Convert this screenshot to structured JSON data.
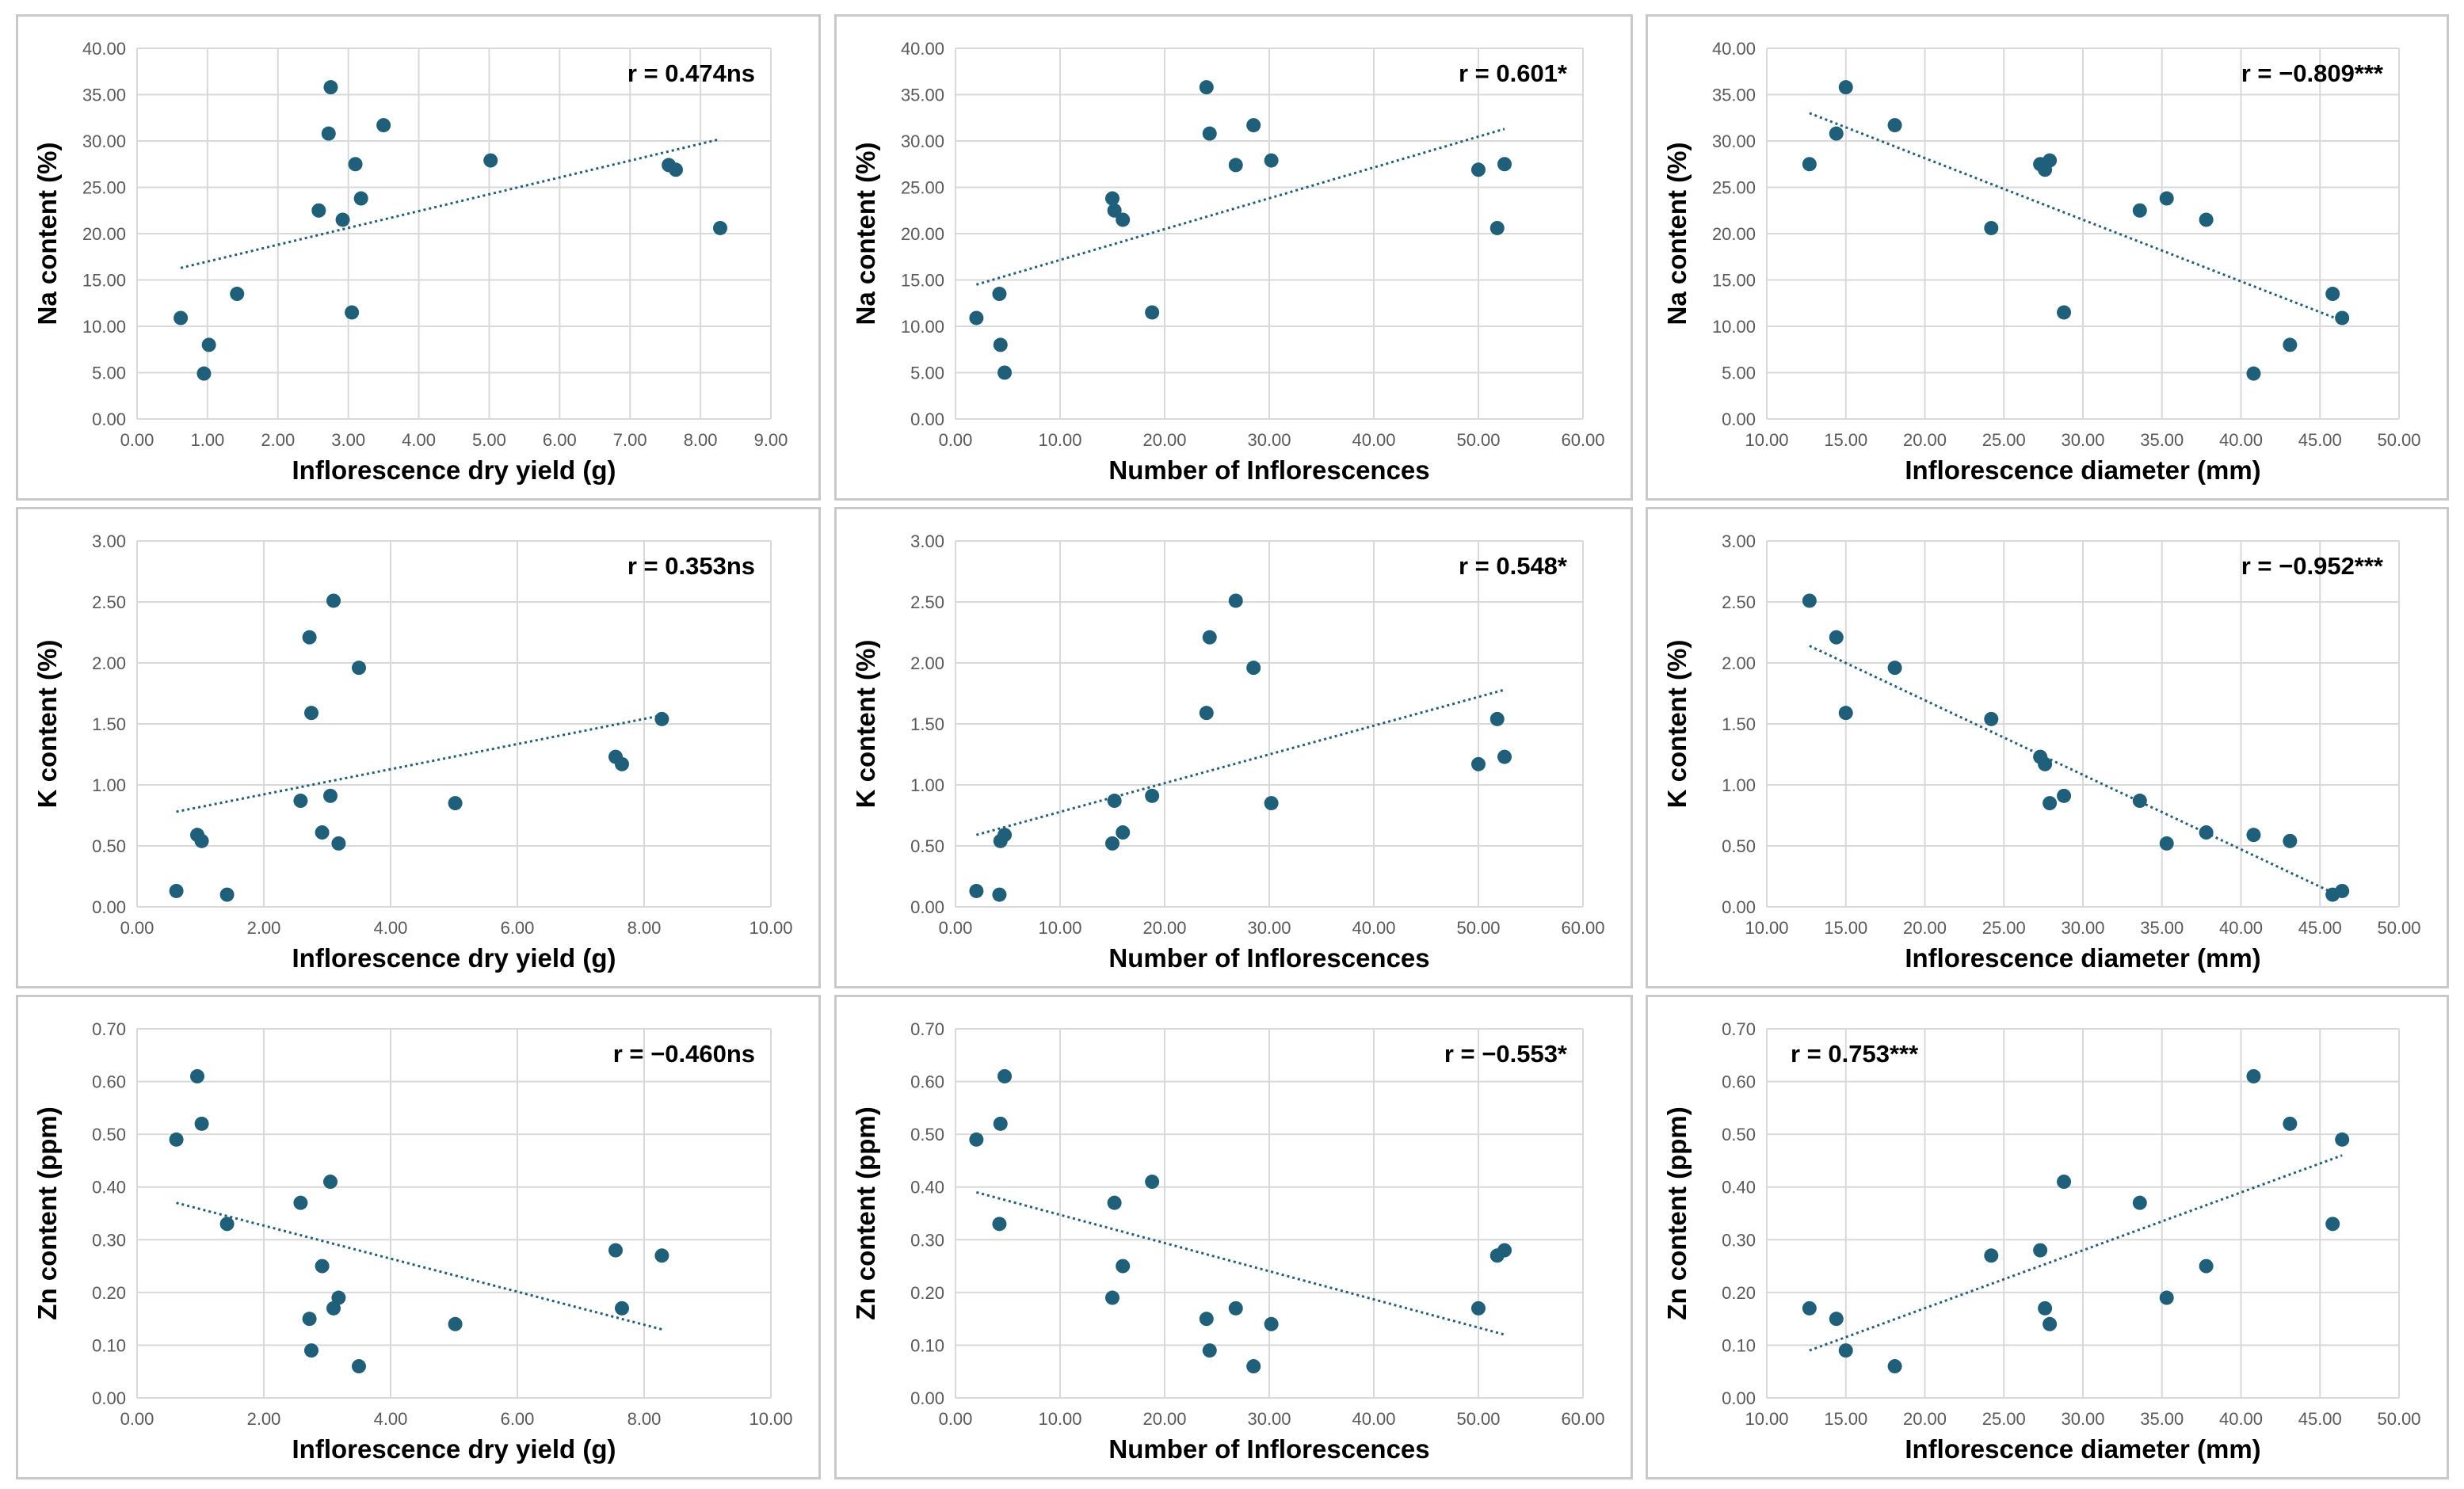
{
  "colors": {
    "point": "#1f5f7a",
    "trend": "#1f5f7a",
    "grid": "#d9d9d9",
    "axis_text": "#595959",
    "label": "#000000"
  },
  "chart_data": [
    {
      "type": "scatter",
      "xlabel": "Inflorescence dry yield (g)",
      "ylabel": "Na content (%)",
      "annotation": "r = 0.474ns",
      "xlim": [
        0,
        9
      ],
      "ylim": [
        0,
        40
      ],
      "xticks": [
        "0.00",
        "1.00",
        "2.00",
        "3.00",
        "4.00",
        "5.00",
        "6.00",
        "7.00",
        "8.00",
        "9.00"
      ],
      "yticks": [
        "0.00",
        "5.00",
        "10.00",
        "15.00",
        "20.00",
        "25.00",
        "30.00",
        "35.00",
        "40.00"
      ],
      "x": [
        0.62,
        1.02,
        0.95,
        1.42,
        2.58,
        2.72,
        2.75,
        2.92,
        3.05,
        3.1,
        3.18,
        3.5,
        5.02,
        7.55,
        7.65,
        8.28
      ],
      "y": [
        10.9,
        8.0,
        4.9,
        13.5,
        22.5,
        30.8,
        35.8,
        21.5,
        11.5,
        27.5,
        23.8,
        31.7,
        27.9,
        27.4,
        26.9,
        20.6
      ],
      "trend": [
        [
          0.62,
          16.3
        ],
        [
          8.28,
          30.2
        ]
      ]
    },
    {
      "type": "scatter",
      "xlabel": "Number of Inflorescences",
      "ylabel": "Na content (%)",
      "annotation": "r = 0.601*",
      "xlim": [
        0,
        60
      ],
      "ylim": [
        0,
        40
      ],
      "xticks": [
        "0.00",
        "10.00",
        "20.00",
        "30.00",
        "40.00",
        "50.00",
        "60.00"
      ],
      "yticks": [
        "0.00",
        "5.00",
        "10.00",
        "15.00",
        "20.00",
        "25.00",
        "30.00",
        "35.00",
        "40.00"
      ],
      "x": [
        2.0,
        4.2,
        4.3,
        4.7,
        15.0,
        15.2,
        16.0,
        18.8,
        24.0,
        24.3,
        26.8,
        28.5,
        30.2,
        50.0,
        51.8,
        52.5
      ],
      "y": [
        10.9,
        13.5,
        8.0,
        5.0,
        23.8,
        22.5,
        21.5,
        11.5,
        35.8,
        30.8,
        27.4,
        31.7,
        27.9,
        26.9,
        20.6,
        27.5
      ],
      "trend": [
        [
          2.0,
          14.5
        ],
        [
          52.5,
          31.3
        ]
      ]
    },
    {
      "type": "scatter",
      "xlabel": "Inflorescence diameter (mm)",
      "ylabel": "Na content (%)",
      "annotation": "r = −0.809***",
      "xlim": [
        10,
        50
      ],
      "ylim": [
        0,
        40
      ],
      "xticks": [
        "10.00",
        "15.00",
        "20.00",
        "25.00",
        "30.00",
        "35.00",
        "40.00",
        "45.00",
        "50.00"
      ],
      "yticks": [
        "0.00",
        "5.00",
        "10.00",
        "15.00",
        "20.00",
        "25.00",
        "30.00",
        "35.00",
        "40.00"
      ],
      "x": [
        12.7,
        14.4,
        15.0,
        18.1,
        24.2,
        27.3,
        27.6,
        27.9,
        28.8,
        33.6,
        35.3,
        37.8,
        40.8,
        43.1,
        45.8,
        46.4
      ],
      "y": [
        27.5,
        30.8,
        35.8,
        31.7,
        20.6,
        27.5,
        26.9,
        27.9,
        11.5,
        22.5,
        23.8,
        21.5,
        4.9,
        8.0,
        13.5,
        10.9
      ],
      "trend": [
        [
          12.7,
          33.0
        ],
        [
          46.4,
          10.6
        ]
      ]
    },
    {
      "type": "scatter",
      "xlabel": "Inflorescence dry yield (g)",
      "ylabel": "K  content (%)",
      "annotation": "r = 0.353ns",
      "xlim": [
        0,
        10
      ],
      "ylim": [
        0,
        3
      ],
      "xticks": [
        "0.00",
        "2.00",
        "4.00",
        "6.00",
        "8.00",
        "10.00"
      ],
      "yticks": [
        "0.00",
        "0.50",
        "1.00",
        "1.50",
        "2.00",
        "2.50",
        "3.00"
      ],
      "x": [
        0.62,
        0.95,
        1.02,
        1.42,
        2.58,
        2.72,
        2.75,
        2.92,
        3.05,
        3.1,
        3.18,
        3.5,
        5.02,
        7.55,
        7.65,
        8.28
      ],
      "y": [
        0.13,
        0.59,
        0.54,
        0.1,
        0.87,
        2.21,
        1.59,
        0.61,
        0.91,
        2.51,
        0.52,
        1.96,
        0.85,
        1.23,
        1.17,
        1.54
      ],
      "trend": [
        [
          0.62,
          0.78
        ],
        [
          8.28,
          1.57
        ]
      ]
    },
    {
      "type": "scatter",
      "xlabel": "Number of Inflorescences",
      "ylabel": "K  content (%)",
      "annotation": "r = 0.548*",
      "xlim": [
        0,
        60
      ],
      "ylim": [
        0,
        3
      ],
      "xticks": [
        "0.00",
        "10.00",
        "20.00",
        "30.00",
        "40.00",
        "50.00",
        "60.00"
      ],
      "yticks": [
        "0.00",
        "0.50",
        "1.00",
        "1.50",
        "2.00",
        "2.50",
        "3.00"
      ],
      "x": [
        2.0,
        4.2,
        4.3,
        4.7,
        15.0,
        15.2,
        16.0,
        18.8,
        24.0,
        24.3,
        26.8,
        28.5,
        30.2,
        50.0,
        51.8,
        52.5
      ],
      "y": [
        0.13,
        0.1,
        0.54,
        0.59,
        0.52,
        0.87,
        0.61,
        0.91,
        1.59,
        2.21,
        2.51,
        1.96,
        0.85,
        1.17,
        1.54,
        1.23
      ],
      "trend": [
        [
          2.0,
          0.59
        ],
        [
          52.5,
          1.78
        ]
      ]
    },
    {
      "type": "scatter",
      "xlabel": "Inflorescence diameter (mm)",
      "ylabel": "K  content (%)",
      "annotation": "r = −0.952***",
      "xlim": [
        10,
        50
      ],
      "ylim": [
        0,
        3
      ],
      "xticks": [
        "10.00",
        "15.00",
        "20.00",
        "25.00",
        "30.00",
        "35.00",
        "40.00",
        "45.00",
        "50.00"
      ],
      "yticks": [
        "0.00",
        "0.50",
        "1.00",
        "1.50",
        "2.00",
        "2.50",
        "3.00"
      ],
      "x": [
        12.7,
        14.4,
        15.0,
        18.1,
        24.2,
        27.3,
        27.6,
        27.9,
        28.8,
        33.6,
        35.3,
        37.8,
        40.8,
        43.1,
        45.8,
        46.4
      ],
      "y": [
        2.51,
        2.21,
        1.59,
        1.96,
        1.54,
        1.23,
        1.17,
        0.85,
        0.91,
        0.87,
        0.52,
        0.61,
        0.59,
        0.54,
        0.1,
        0.13
      ],
      "trend": [
        [
          12.7,
          2.14
        ],
        [
          46.4,
          0.08
        ]
      ]
    },
    {
      "type": "scatter",
      "xlabel": "Inflorescence dry yield (g)",
      "ylabel": "Zn  content (ppm)",
      "annotation": "r = −0.460ns",
      "xlim": [
        0,
        10
      ],
      "ylim": [
        0,
        0.7
      ],
      "xticks": [
        "0.00",
        "2.00",
        "4.00",
        "6.00",
        "8.00",
        "10.00"
      ],
      "yticks": [
        "0.00",
        "0.10",
        "0.20",
        "0.30",
        "0.40",
        "0.50",
        "0.60",
        "0.70"
      ],
      "x": [
        0.62,
        0.95,
        1.02,
        1.42,
        2.58,
        2.72,
        2.75,
        2.92,
        3.05,
        3.1,
        3.18,
        3.5,
        5.02,
        7.55,
        7.65,
        8.28
      ],
      "y": [
        0.49,
        0.61,
        0.52,
        0.33,
        0.37,
        0.15,
        0.09,
        0.25,
        0.41,
        0.17,
        0.19,
        0.06,
        0.14,
        0.28,
        0.17,
        0.27
      ],
      "trend": [
        [
          0.62,
          0.37
        ],
        [
          8.28,
          0.13
        ]
      ]
    },
    {
      "type": "scatter",
      "xlabel": "Number of Inflorescences",
      "ylabel": "Zn  content (ppm)",
      "annotation": "r = −0.553*",
      "xlim": [
        0,
        60
      ],
      "ylim": [
        0,
        0.7
      ],
      "xticks": [
        "0.00",
        "10.00",
        "20.00",
        "30.00",
        "40.00",
        "50.00",
        "60.00"
      ],
      "yticks": [
        "0.00",
        "0.10",
        "0.20",
        "0.30",
        "0.40",
        "0.50",
        "0.60",
        "0.70"
      ],
      "x": [
        2.0,
        4.2,
        4.3,
        4.7,
        15.0,
        15.2,
        16.0,
        18.8,
        24.0,
        24.3,
        26.8,
        28.5,
        30.2,
        50.0,
        51.8,
        52.5
      ],
      "y": [
        0.49,
        0.33,
        0.52,
        0.61,
        0.19,
        0.37,
        0.25,
        0.41,
        0.15,
        0.09,
        0.17,
        0.06,
        0.14,
        0.17,
        0.27,
        0.28
      ],
      "trend": [
        [
          2.0,
          0.39
        ],
        [
          52.5,
          0.12
        ]
      ]
    },
    {
      "type": "scatter",
      "xlabel": "Inflorescence diameter (mm)",
      "ylabel": "Zn  content (ppm)",
      "annotation": "r = 0.753***",
      "annotation_position": "top-left",
      "xlim": [
        10,
        50
      ],
      "ylim": [
        0,
        0.7
      ],
      "xticks": [
        "10.00",
        "15.00",
        "20.00",
        "25.00",
        "30.00",
        "35.00",
        "40.00",
        "45.00",
        "50.00"
      ],
      "yticks": [
        "0.00",
        "0.10",
        "0.20",
        "0.30",
        "0.40",
        "0.50",
        "0.60",
        "0.70"
      ],
      "x": [
        12.7,
        14.4,
        15.0,
        18.1,
        24.2,
        27.3,
        27.6,
        27.9,
        28.8,
        33.6,
        35.3,
        37.8,
        40.8,
        43.1,
        45.8,
        46.4
      ],
      "y": [
        0.17,
        0.15,
        0.09,
        0.06,
        0.27,
        0.28,
        0.17,
        0.14,
        0.41,
        0.37,
        0.19,
        0.25,
        0.61,
        0.52,
        0.33,
        0.49
      ],
      "trend": [
        [
          12.7,
          0.09
        ],
        [
          46.4,
          0.46
        ]
      ]
    }
  ]
}
